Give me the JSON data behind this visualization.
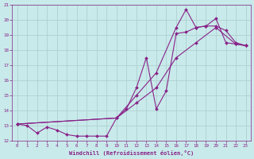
{
  "xlabel": "Windchill (Refroidissement éolien,°C)",
  "background_color": "#c8eaea",
  "grid_color": "#b0d0d0",
  "line_color": "#882288",
  "xlim": [
    -0.5,
    23.5
  ],
  "ylim": [
    12,
    21
  ],
  "xticks": [
    0,
    1,
    2,
    3,
    4,
    5,
    6,
    7,
    8,
    9,
    10,
    11,
    12,
    13,
    14,
    15,
    16,
    17,
    18,
    19,
    20,
    21,
    22,
    23
  ],
  "yticks": [
    12,
    13,
    14,
    15,
    16,
    17,
    18,
    19,
    20,
    21
  ],
  "series1_x": [
    0,
    1,
    2,
    3,
    4,
    5,
    6,
    7,
    8,
    9,
    10,
    11,
    12,
    13,
    14,
    15,
    16,
    17,
    18,
    19,
    20,
    21,
    22,
    23
  ],
  "series1_y": [
    13.1,
    13.0,
    12.5,
    12.9,
    12.7,
    12.4,
    12.3,
    12.3,
    12.3,
    12.3,
    13.5,
    14.1,
    15.5,
    17.5,
    14.1,
    15.3,
    19.1,
    19.2,
    19.5,
    19.6,
    20.1,
    18.5,
    18.4,
    18.3
  ],
  "series2_x": [
    0,
    10,
    12,
    14,
    16,
    18,
    20,
    22,
    23
  ],
  "series2_y": [
    13.1,
    13.5,
    14.5,
    15.5,
    17.5,
    18.5,
    19.5,
    18.4,
    18.3
  ],
  "series3_x": [
    0,
    10,
    12,
    14,
    16,
    17,
    18,
    19,
    20,
    21,
    22,
    23
  ],
  "series3_y": [
    13.1,
    13.5,
    15.0,
    16.5,
    19.5,
    20.7,
    19.5,
    19.6,
    19.6,
    19.3,
    18.5,
    18.3
  ]
}
